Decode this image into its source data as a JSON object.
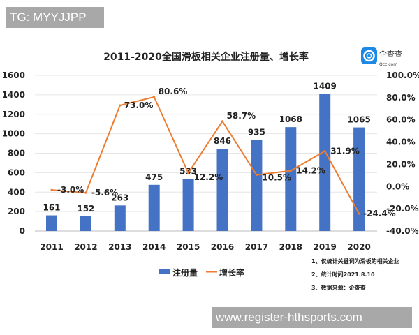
{
  "watermarks": {
    "top": "TG: MYYJJPP",
    "bottom": "www.register-hthsports.com"
  },
  "logo": {
    "text_cn": "企查查",
    "text_en": "Qcc.com"
  },
  "chart_data": {
    "type": "bar",
    "title": "2011-2020全国滑板相关企业注册量、增长率",
    "categories": [
      "2011",
      "2012",
      "2013",
      "2014",
      "2015",
      "2016",
      "2017",
      "2018",
      "2019",
      "2020"
    ],
    "series": [
      {
        "name": "注册量",
        "type": "bar",
        "axis": "left",
        "color": "#4472c4",
        "values": [
          161,
          152,
          263,
          475,
          533,
          846,
          935,
          1068,
          1409,
          1065
        ],
        "labels": [
          "161",
          "152",
          "263",
          "475",
          "533",
          "846",
          "935",
          "1068",
          "1409",
          "1065"
        ]
      },
      {
        "name": "增长率",
        "type": "line",
        "axis": "right",
        "color": "#ed7d31",
        "values": [
          -3.0,
          -5.6,
          73.0,
          80.6,
          12.2,
          58.7,
          10.5,
          14.2,
          31.9,
          -24.4
        ],
        "labels": [
          "-3.0%",
          "-5.6%",
          "73.0%",
          "80.6%",
          "12.2%",
          "58.7%",
          "10.5%",
          "14.2%",
          "31.9%",
          "-24.4%"
        ]
      }
    ],
    "y_left": {
      "range": [
        0,
        1600
      ],
      "ticks": [
        "0",
        "200",
        "400",
        "600",
        "800",
        "1000",
        "1200",
        "1400",
        "1600"
      ]
    },
    "y_right": {
      "range": [
        -40,
        100
      ],
      "ticks": [
        "-40.0%",
        "-20.0%",
        "0.0%",
        "20.0%",
        "40.0%",
        "60.0%",
        "80.0%",
        "100.0%"
      ]
    },
    "grid": true,
    "legend": "bottom",
    "notes": [
      "1、仅统计关键词为滑板的相关企业",
      "2、统计时间2021.8.10",
      "3、数据来源：企查查"
    ]
  }
}
